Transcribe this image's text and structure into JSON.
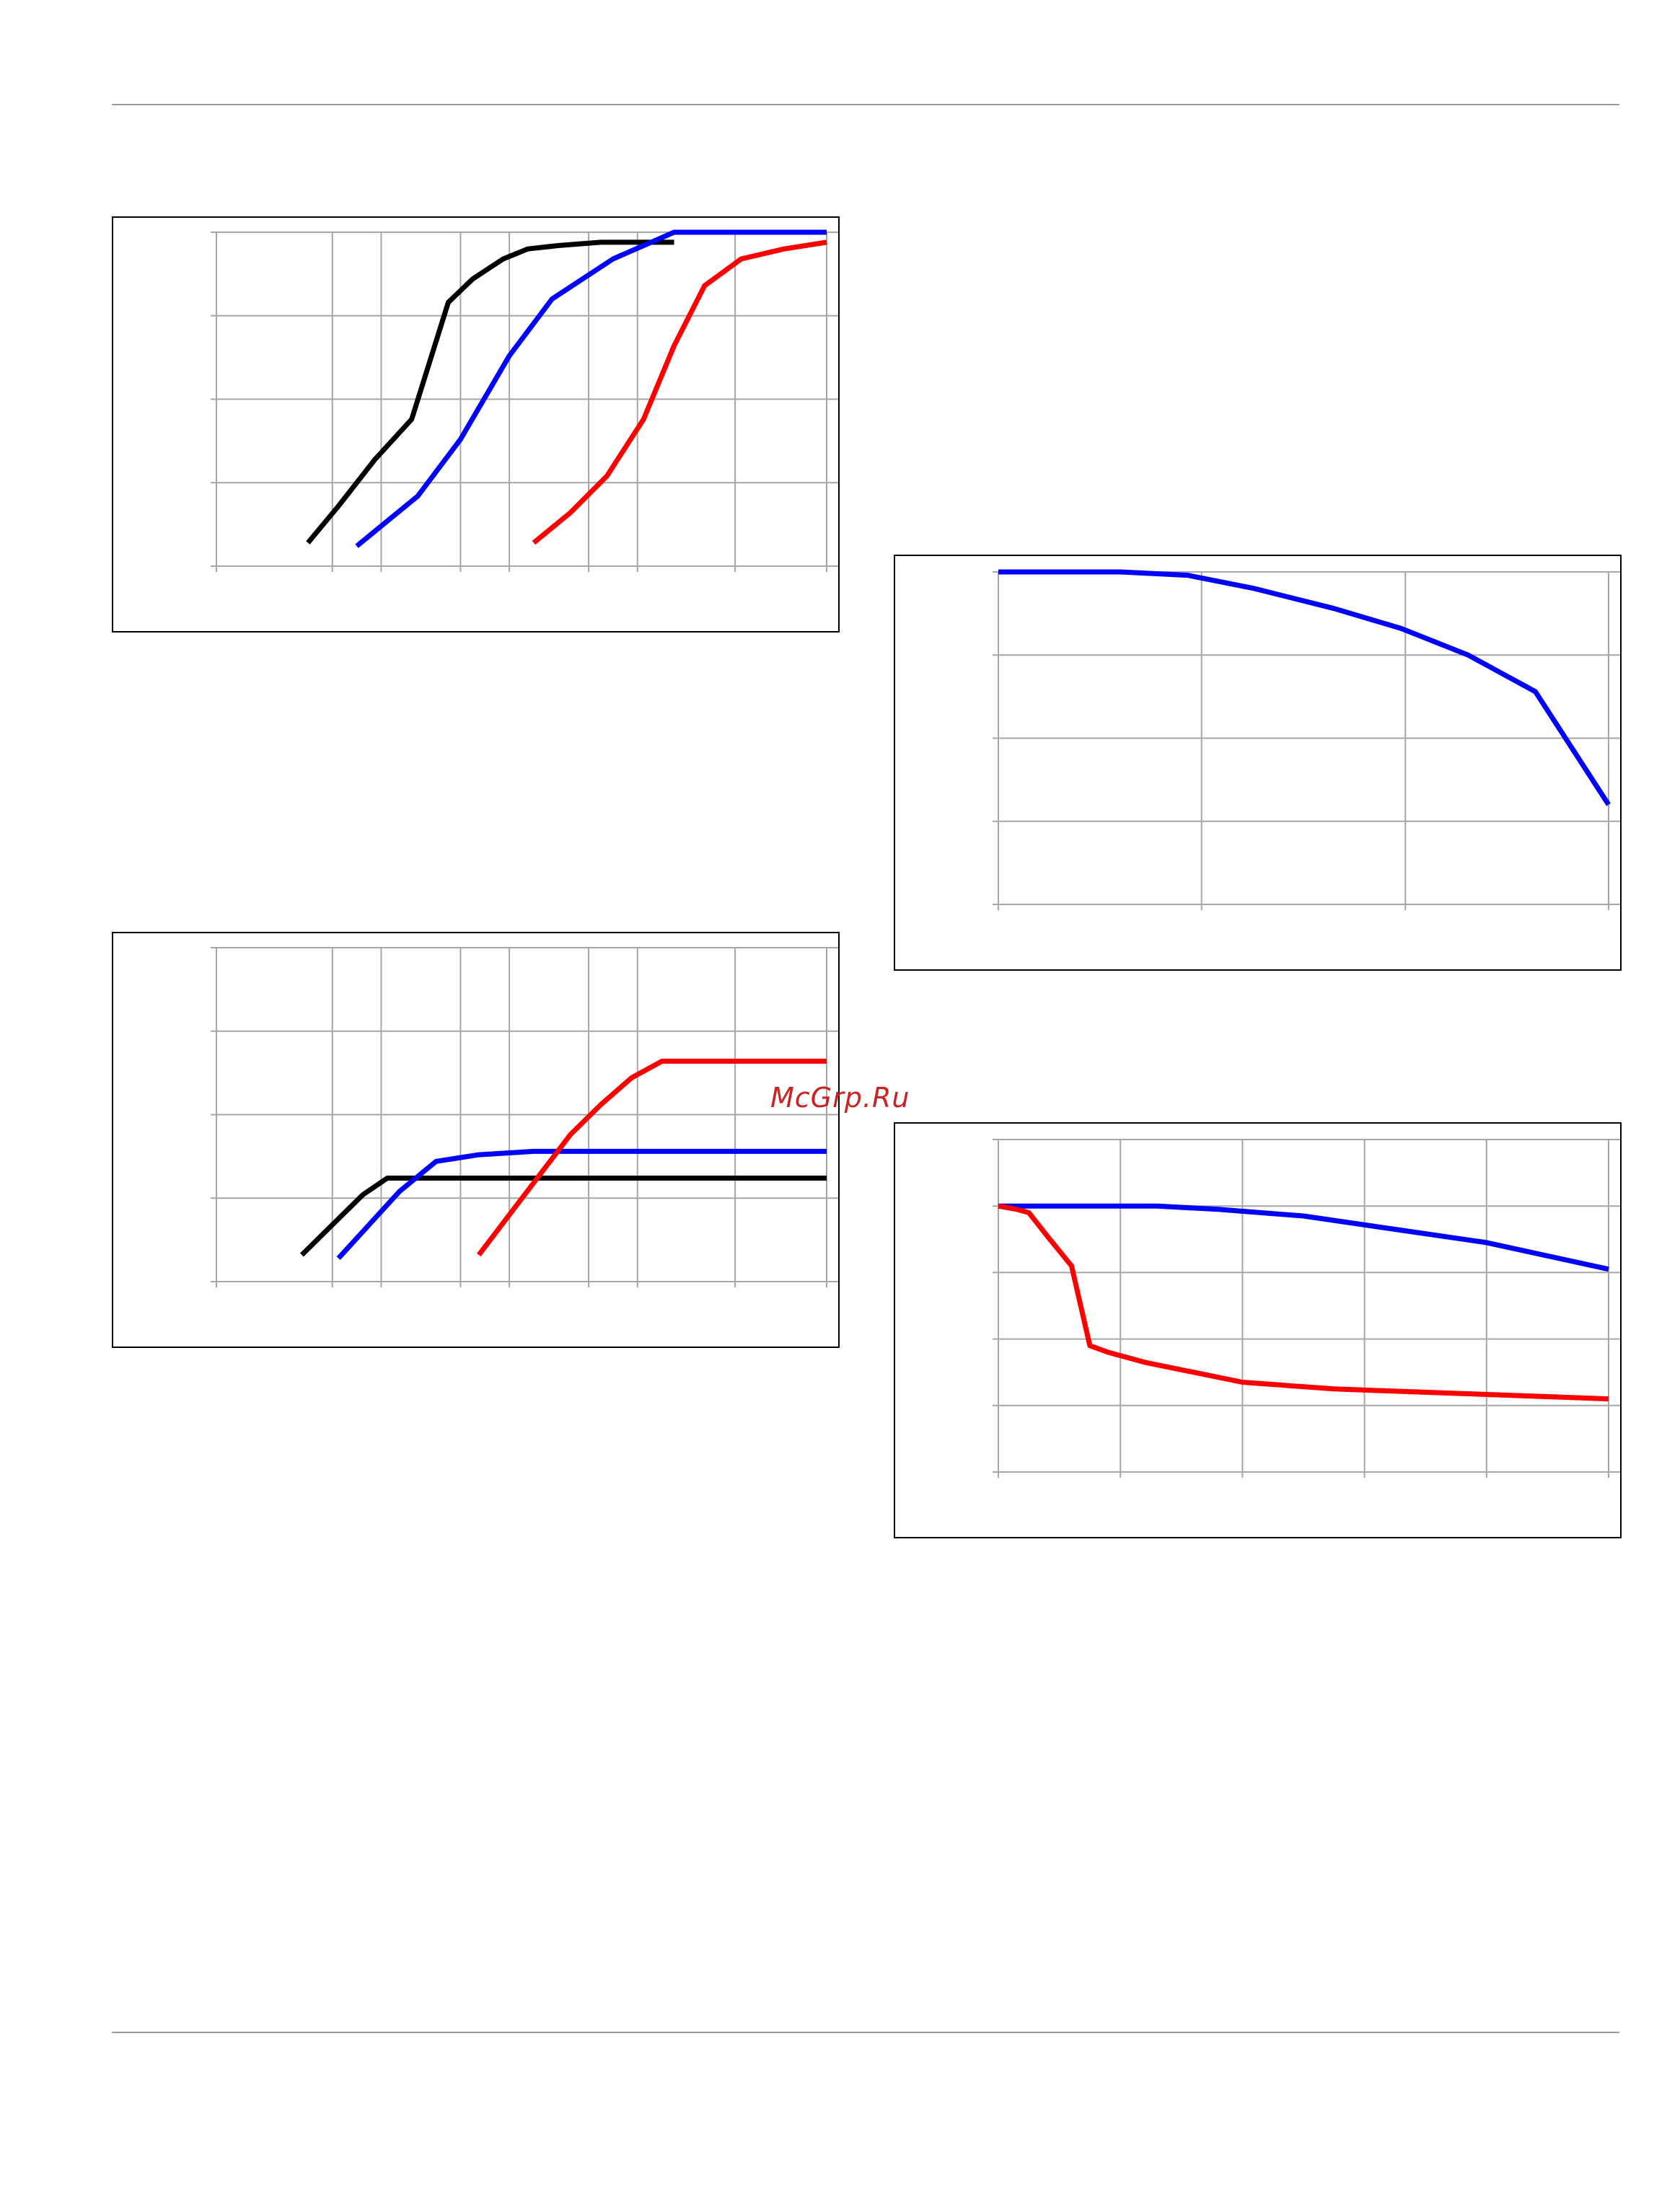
{
  "watermark": {
    "text": "McGrp.Ru",
    "color": "#cc2222"
  },
  "colors": {
    "grid": "#a6a6a6",
    "black": "#000000",
    "blue": "#0000ff",
    "red": "#ff0000"
  },
  "chart_data": [
    {
      "type": "line",
      "grid": true,
      "xlim": [
        0,
        100
      ],
      "ylim": [
        0,
        100
      ],
      "x_gridlines": [
        19,
        27,
        40,
        48,
        61,
        69,
        85
      ],
      "y_gridlines": [
        25,
        50,
        75
      ],
      "series": [
        {
          "color": "#000000",
          "points": [
            [
              15,
              7
            ],
            [
              20,
              18
            ],
            [
              26,
              32
            ],
            [
              32,
              44
            ],
            [
              38,
              79
            ],
            [
              42,
              86
            ],
            [
              47,
              92
            ],
            [
              51,
              95
            ],
            [
              56,
              96
            ],
            [
              63,
              97
            ],
            [
              70,
              97
            ],
            [
              75,
              97
            ]
          ]
        },
        {
          "color": "#0000ff",
          "points": [
            [
              23,
              6
            ],
            [
              33,
              21
            ],
            [
              40,
              38
            ],
            [
              48,
              63
            ],
            [
              55,
              80
            ],
            [
              65,
              92
            ],
            [
              75,
              100
            ],
            [
              85,
              100
            ],
            [
              100,
              100
            ]
          ]
        },
        {
          "color": "#ff0000",
          "points": [
            [
              52,
              7
            ],
            [
              58,
              16
            ],
            [
              64,
              27
            ],
            [
              70,
              44
            ],
            [
              75,
              66
            ],
            [
              80,
              84
            ],
            [
              86,
              92
            ],
            [
              93,
              95
            ],
            [
              100,
              97
            ]
          ]
        }
      ]
    },
    {
      "type": "line",
      "grid": true,
      "xlim": [
        0,
        100
      ],
      "ylim": [
        0,
        100
      ],
      "x_gridlines": [
        19,
        27,
        40,
        48,
        61,
        69,
        85
      ],
      "y_gridlines": [
        25,
        50,
        75
      ],
      "series": [
        {
          "color": "#000000",
          "points": [
            [
              14,
              8
            ],
            [
              19,
              17
            ],
            [
              24,
              26
            ],
            [
              28,
              31
            ],
            [
              33,
              31
            ],
            [
              45,
              31
            ],
            [
              60,
              31
            ],
            [
              75,
              31
            ],
            [
              100,
              31
            ]
          ]
        },
        {
          "color": "#0000ff",
          "points": [
            [
              20,
              7
            ],
            [
              25,
              17
            ],
            [
              30,
              27
            ],
            [
              36,
              36
            ],
            [
              43,
              38
            ],
            [
              52,
              39
            ],
            [
              61,
              39
            ],
            [
              75,
              39
            ],
            [
              100,
              39
            ]
          ]
        },
        {
          "color": "#ff0000",
          "points": [
            [
              43,
              8
            ],
            [
              48,
              20
            ],
            [
              53,
              32
            ],
            [
              58,
              44
            ],
            [
              63,
              53
            ],
            [
              68,
              61
            ],
            [
              73,
              66
            ],
            [
              78,
              66
            ],
            [
              88,
              66
            ],
            [
              100,
              66
            ]
          ]
        }
      ]
    },
    {
      "type": "line",
      "grid": true,
      "xlim": [
        0,
        100
      ],
      "ylim": [
        0,
        100
      ],
      "x_gridlines": [
        33.3,
        66.7
      ],
      "y_gridlines": [
        25,
        50,
        75
      ],
      "series": [
        {
          "color": "#0000ff",
          "points": [
            [
              0,
              100
            ],
            [
              10,
              100
            ],
            [
              20,
              100
            ],
            [
              31,
              99
            ],
            [
              42,
              95
            ],
            [
              55,
              89
            ],
            [
              66,
              83
            ],
            [
              77,
              75
            ],
            [
              88,
              64
            ],
            [
              100,
              30
            ]
          ]
        }
      ]
    },
    {
      "type": "line",
      "grid": true,
      "xlim": [
        0,
        100
      ],
      "ylim": [
        0,
        100
      ],
      "x_gridlines": [
        20,
        40,
        60,
        80
      ],
      "y_gridlines": [
        20,
        40,
        60,
        80
      ],
      "series": [
        {
          "color": "#0000ff",
          "points": [
            [
              0,
              80
            ],
            [
              10,
              80
            ],
            [
              20,
              80
            ],
            [
              26,
              80
            ],
            [
              36,
              79
            ],
            [
              50,
              77
            ],
            [
              65,
              73
            ],
            [
              80,
              69
            ],
            [
              100,
              61
            ]
          ]
        },
        {
          "color": "#ff0000",
          "points": [
            [
              0,
              80
            ],
            [
              3,
              79
            ],
            [
              5,
              78
            ],
            [
              8,
              71
            ],
            [
              12,
              62
            ],
            [
              15,
              38
            ],
            [
              18,
              36
            ],
            [
              24,
              33
            ],
            [
              32,
              30
            ],
            [
              40,
              27
            ],
            [
              55,
              25
            ],
            [
              70,
              24
            ],
            [
              85,
              23
            ],
            [
              100,
              22
            ]
          ]
        }
      ]
    }
  ]
}
